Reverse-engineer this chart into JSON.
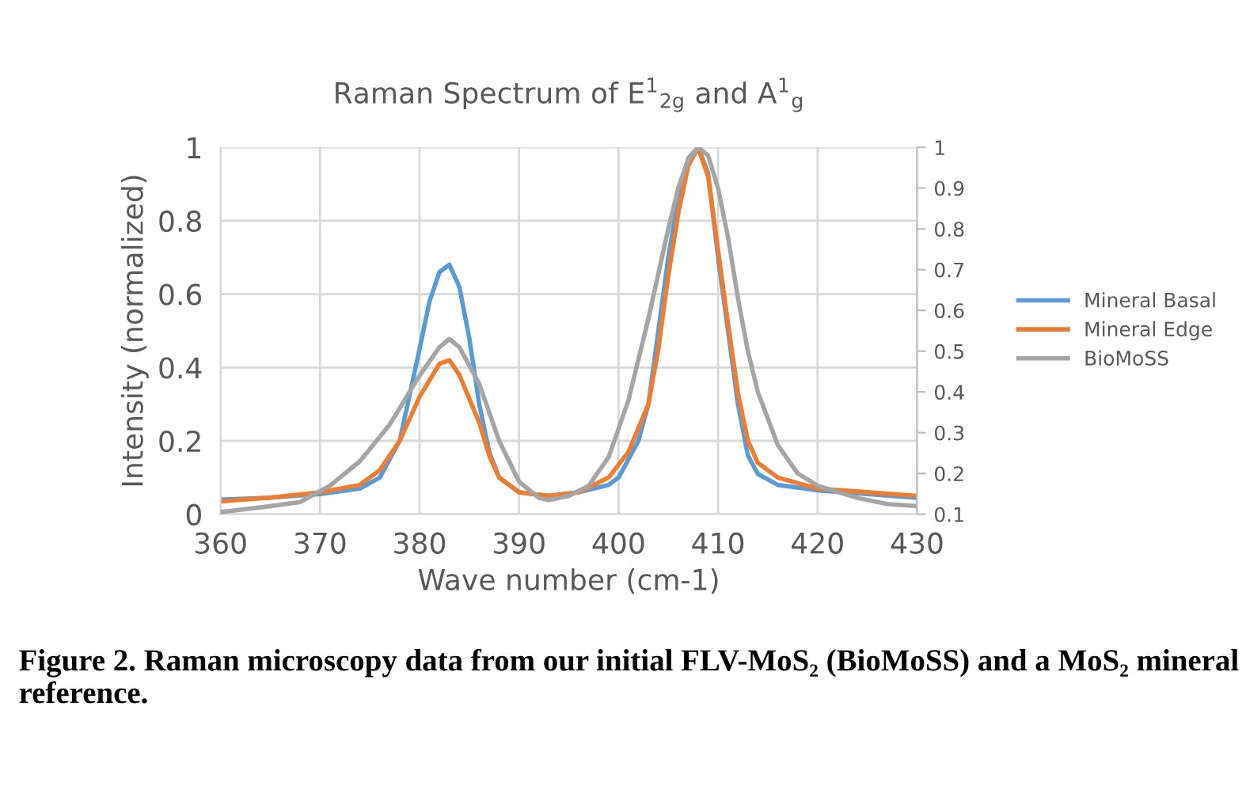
{
  "chart_data": {
    "type": "line",
    "title": "Raman Spectrum of E$^{1}$$_{2g}$ and A$^{1}$$_{g}$",
    "xlabel": "Wave number (cm-1)",
    "ylabel": "Intensity (normalized)",
    "xlim": [
      360,
      430
    ],
    "xticks": [
      360,
      370,
      380,
      390,
      400,
      410,
      420,
      430
    ],
    "ylim": [
      0,
      1
    ],
    "yticks": [
      0,
      0.2,
      0.4,
      0.6,
      0.8,
      1
    ],
    "y2lim": [
      0.1,
      1
    ],
    "y2ticks": [
      0.1,
      0.2,
      0.3,
      0.4,
      0.5,
      0.6,
      0.7,
      0.8,
      0.9,
      1
    ],
    "grid": true,
    "legend": "right",
    "marker": "none",
    "line_style": "solid",
    "annotations": [
      "Figure 2. Raman microscopy data from our initial FLV-MoS₂ (BioMoSS) and a MoS₂ mineral reference."
    ],
    "series": [
      {
        "name": "Mineral Basal",
        "color": "#5b9bd5",
        "x": [
          360,
          365,
          370,
          374,
          376,
          378,
          380,
          381,
          382,
          383,
          384,
          385,
          386,
          387,
          388,
          390,
          393,
          396,
          399,
          400,
          402,
          403,
          404,
          405,
          406,
          407,
          408,
          409,
          410,
          411,
          412,
          413,
          414,
          416,
          420,
          425,
          430
        ],
        "values": [
          0.04,
          0.045,
          0.055,
          0.07,
          0.1,
          0.2,
          0.45,
          0.58,
          0.66,
          0.68,
          0.62,
          0.48,
          0.3,
          0.17,
          0.1,
          0.06,
          0.05,
          0.06,
          0.08,
          0.1,
          0.2,
          0.3,
          0.5,
          0.7,
          0.86,
          0.97,
          1.0,
          0.93,
          0.7,
          0.5,
          0.3,
          0.16,
          0.11,
          0.08,
          0.065,
          0.055,
          0.045
        ]
      },
      {
        "name": "Mineral Edge",
        "color": "#ed7d31",
        "x": [
          360,
          365,
          370,
          374,
          376,
          378,
          380,
          382,
          383,
          384,
          386,
          387,
          388,
          390,
          393,
          396,
          399,
          401,
          403,
          404,
          405,
          406,
          407,
          408,
          409,
          410,
          411,
          412,
          413,
          414,
          416,
          420,
          425,
          430
        ],
        "values": [
          0.035,
          0.045,
          0.06,
          0.08,
          0.12,
          0.2,
          0.32,
          0.41,
          0.42,
          0.38,
          0.25,
          0.16,
          0.1,
          0.06,
          0.05,
          0.06,
          0.1,
          0.17,
          0.3,
          0.45,
          0.65,
          0.82,
          0.95,
          1.0,
          0.92,
          0.72,
          0.52,
          0.33,
          0.2,
          0.14,
          0.1,
          0.07,
          0.06,
          0.05
        ]
      },
      {
        "name": "BioMoSS",
        "color": "#a5a5a5",
        "axis": "y2",
        "x": [
          360,
          365,
          368,
          371,
          374,
          377,
          380,
          382,
          383,
          384,
          386,
          388,
          390,
          392,
          393,
          395,
          397,
          399,
          401,
          403,
          405,
          406,
          407,
          408,
          409,
          410,
          411,
          412,
          413,
          414,
          416,
          418,
          420,
          424,
          427,
          430
        ],
        "values": [
          0.105,
          0.12,
          0.13,
          0.17,
          0.23,
          0.32,
          0.44,
          0.51,
          0.53,
          0.51,
          0.42,
          0.28,
          0.18,
          0.14,
          0.135,
          0.145,
          0.17,
          0.24,
          0.38,
          0.58,
          0.8,
          0.9,
          0.97,
          1.0,
          0.98,
          0.9,
          0.78,
          0.63,
          0.5,
          0.4,
          0.27,
          0.2,
          0.17,
          0.14,
          0.125,
          0.12
        ]
      }
    ]
  }
}
